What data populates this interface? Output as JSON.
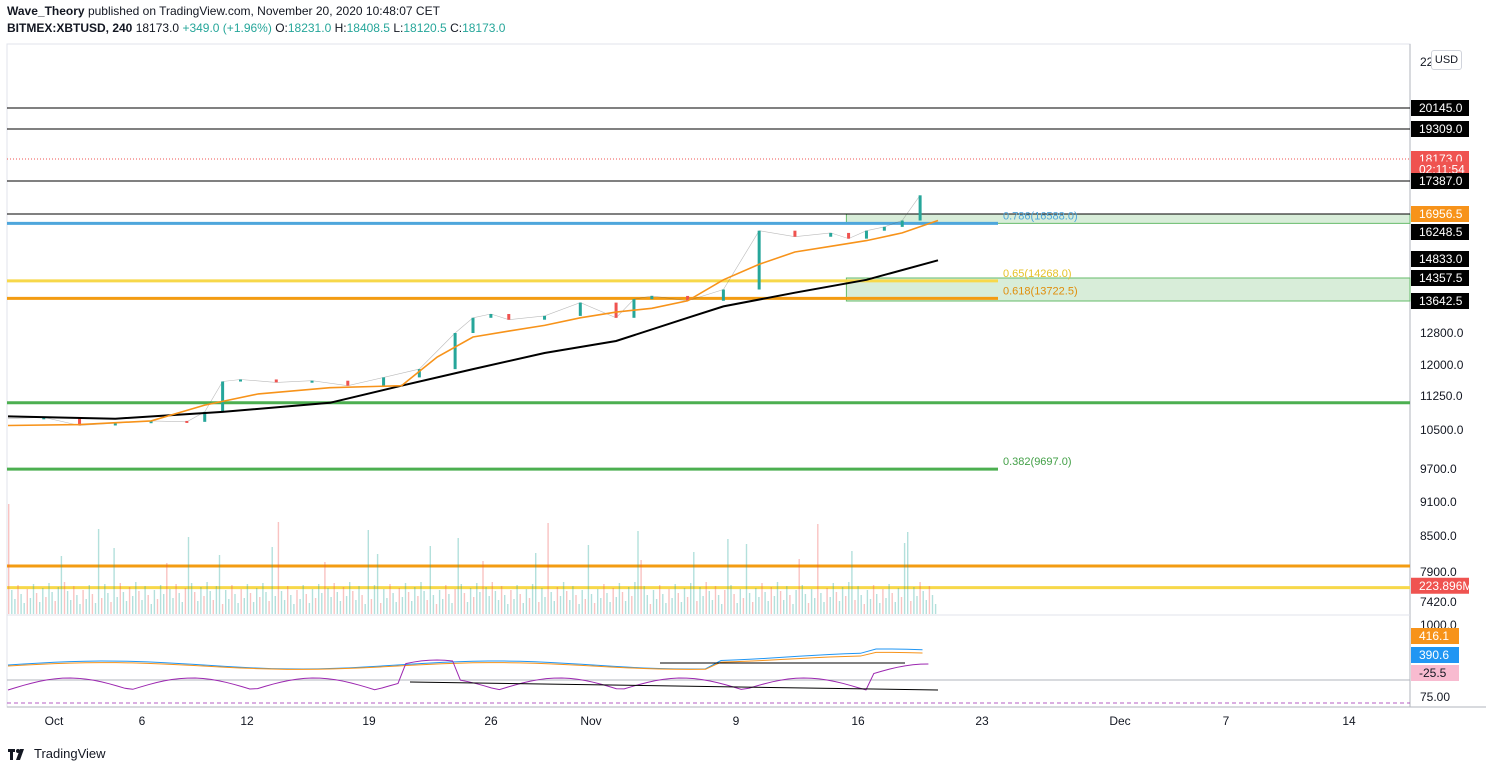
{
  "header": {
    "author": "Wave_Theory",
    "published": "published on TradingView.com, November 20, 2020 10:48:07 CET",
    "symbol": "BITMEX:XBTUSD, 240",
    "last": "18173.0",
    "change": "+349.0 (+1.96%)",
    "o_label": "O:",
    "o_value": "18231.0",
    "h_label": "H:",
    "h_value": "18408.5",
    "l_label": "L:",
    "l_value": "18120.5",
    "c_label": "C:",
    "c_value": "18173.0"
  },
  "currency_button": "USD",
  "brand": "TradingView",
  "colors": {
    "up": "#26a69a",
    "down": "#ef5350",
    "ema_orange": "#f7931a",
    "ma_black": "#000000",
    "fib_blue": "#4ea6dc",
    "fib_yellow": "#f7d84a",
    "fib_orange": "#f39c12",
    "fib_green": "#4caf50",
    "zone": "#c8e6c9",
    "macd_blue": "#2196f3",
    "rsi": "#9c27b0"
  },
  "chart_data": {
    "type": "line",
    "symbol": "BITMEX:XBTUSD",
    "interval": "240",
    "x_ticks": [
      "Oct",
      "6",
      "12",
      "19",
      "26",
      "Nov",
      "9",
      "16",
      "23",
      "Dec",
      "7",
      "14"
    ],
    "y_ticks": [
      "22",
      "12800.0",
      "12000.0",
      "11250.0",
      "10500.0",
      "9700.0",
      "9100.0",
      "8500.0",
      "7900.0",
      "7420.0"
    ],
    "price_scale": [
      {
        "price": 22000,
        "y": 66
      },
      {
        "price": 20145,
        "y": 108
      },
      {
        "price": 19309,
        "y": 129
      },
      {
        "price": 18173,
        "y": 159
      },
      {
        "price": 17387,
        "y": 181
      },
      {
        "price": 16956.5,
        "y": 214
      },
      {
        "price": 16248.5,
        "y": 232
      },
      {
        "price": 14833,
        "y": 259
      },
      {
        "price": 14357.5,
        "y": 278
      },
      {
        "price": 13642.5,
        "y": 301
      },
      {
        "price": 12800,
        "y": 333
      },
      {
        "price": 12000,
        "y": 365
      },
      {
        "price": 11250,
        "y": 396
      },
      {
        "price": 10500,
        "y": 430
      },
      {
        "price": 9700,
        "y": 469
      },
      {
        "price": 9100,
        "y": 502
      },
      {
        "price": 8500,
        "y": 536
      },
      {
        "price": 7900,
        "y": 572
      },
      {
        "price": 7420,
        "y": 602
      }
    ],
    "price_tags": [
      {
        "label": "20145.0",
        "price": 20145,
        "style": "dark"
      },
      {
        "label": "19309.0",
        "price": 19309,
        "style": "dark"
      },
      {
        "label": "18173.0",
        "price": 18173,
        "style": "red"
      },
      {
        "label": "02:11:54",
        "price": 17800,
        "style": "red"
      },
      {
        "label": "17387.0",
        "price": 17387,
        "style": "dark"
      },
      {
        "label": "16956.5",
        "price": 16956.5,
        "style": "orange"
      },
      {
        "label": "16248.5",
        "price": 16248.5,
        "style": "dark"
      },
      {
        "label": "14833.0",
        "price": 14833,
        "style": "dark"
      },
      {
        "label": "14357.5",
        "price": 14357.5,
        "style": "dark"
      },
      {
        "label": "13642.5",
        "price": 13642.5,
        "style": "dark"
      },
      {
        "label": "223.896M",
        "price": 7680,
        "style": "red"
      }
    ],
    "horizontal_levels": [
      {
        "price": 20145,
        "color": "#000000",
        "width": 1
      },
      {
        "price": 19309,
        "color": "#000000",
        "width": 1
      },
      {
        "price": 17387,
        "color": "#000000",
        "width": 1
      },
      {
        "price": 16588,
        "color": "#4ea6dc",
        "width": 3,
        "end": "fib"
      },
      {
        "price": 16956.5,
        "color": "#000000",
        "width": 1
      },
      {
        "price": 14268,
        "color": "#f7d84a",
        "width": 3,
        "end": "fib"
      },
      {
        "price": 13722.5,
        "color": "#f39c12",
        "width": 3,
        "end": "fib"
      },
      {
        "price": 11100,
        "color": "#4caf50",
        "width": 3
      },
      {
        "price": 9697,
        "color": "#4caf50",
        "width": 3,
        "end": "fib"
      },
      {
        "price": 8000,
        "color": "#f39c12",
        "width": 3
      },
      {
        "price": 7650,
        "color": "#f7d84a",
        "width": 3
      }
    ],
    "current_price": 18173,
    "fib_labels": [
      {
        "label": "0.786(16588.0)",
        "price": 16588,
        "color": "#4ea6dc"
      },
      {
        "label": "0.65(14268.0)",
        "price": 14268,
        "color": "#e6c229"
      },
      {
        "label": "0.618(13722.5)",
        "price": 13722.5,
        "color": "#e08e0b"
      },
      {
        "label": "0.382(9697.0)",
        "price": 9697,
        "color": "#43a047"
      }
    ],
    "zones": [
      {
        "x_start": 0.598,
        "x_end": 1.0,
        "price_high": 16588,
        "price_low": 16956.5
      },
      {
        "x_start": 0.598,
        "x_end": 1.0,
        "price_high": 14357.5,
        "price_low": 13642.5
      }
    ],
    "price_series": {
      "name": "",
      "x": [
        0,
        2,
        4,
        6,
        8,
        10,
        11,
        12,
        13,
        15,
        17,
        19,
        21,
        23,
        25,
        26,
        27,
        28,
        30,
        32,
        34,
        35,
        36,
        38,
        40,
        42,
        44,
        46,
        47,
        48,
        49,
        50,
        51
      ],
      "close": [
        10750,
        10780,
        10600,
        10650,
        10700,
        10680,
        10900,
        11600,
        11650,
        11580,
        11620,
        11500,
        11700,
        11900,
        12800,
        13200,
        13300,
        13150,
        13250,
        13600,
        13200,
        13700,
        13800,
        13650,
        14000,
        16300,
        16000,
        16200,
        15900,
        16300,
        16450,
        16700,
        17200
      ]
    },
    "ema_series": {
      "name": "",
      "x": [
        0,
        4,
        8,
        11,
        14,
        18,
        22,
        24,
        26,
        28,
        30,
        32,
        34,
        36,
        38,
        40,
        42,
        44,
        46,
        48,
        50,
        52
      ],
      "y": [
        10600,
        10620,
        10700,
        11050,
        11300,
        11450,
        11500,
        12200,
        12700,
        12850,
        13000,
        13200,
        13350,
        13450,
        13650,
        14300,
        14700,
        15200,
        15500,
        15800,
        16200,
        16700
      ]
    },
    "ma_series": {
      "name": "",
      "x": [
        0,
        6,
        12,
        18,
        22,
        26,
        30,
        34,
        38,
        40,
        44,
        48,
        52
      ],
      "y": [
        10800,
        10750,
        10900,
        11100,
        11500,
        11900,
        12300,
        12600,
        13200,
        13500,
        13900,
        14300,
        14800
      ]
    },
    "volume": {
      "note_last": "223.896M"
    },
    "macd": {
      "ticks": [
        "1000.0",
        "416.1",
        "390.6",
        "-25.5"
      ],
      "signal_tags": [
        {
          "label": "416.1",
          "color": "#f7931a"
        },
        {
          "label": "390.6",
          "color": "#2196f3"
        },
        {
          "label": "-25.5",
          "color": "#f8bbd0"
        }
      ]
    },
    "rsi": {
      "ticks": [
        "75.00"
      ]
    },
    "xlabel": "",
    "ylabel": ""
  }
}
